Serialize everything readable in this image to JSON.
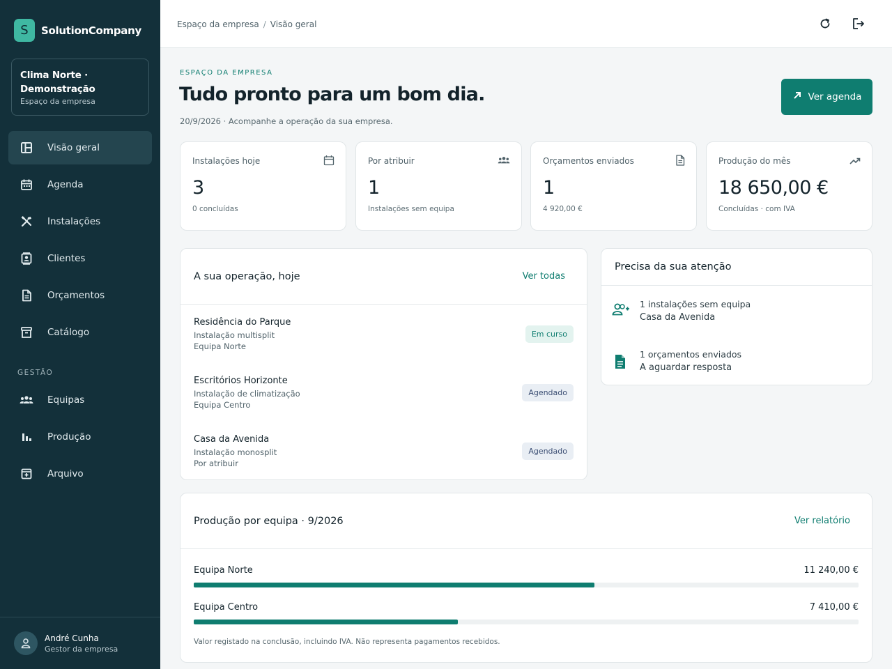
{
  "brand": {
    "logo_letter": "S",
    "name": "SolutionCompany"
  },
  "company": {
    "name": "Clima Norte · Demonstração",
    "subtitle": "Espaço da empresa"
  },
  "nav": {
    "items": [
      {
        "label": "Visão geral",
        "icon": "layout-icon",
        "active": true
      },
      {
        "label": "Agenda",
        "icon": "calendar-icon"
      },
      {
        "label": "Instalações",
        "icon": "tools-icon"
      },
      {
        "label": "Clientes",
        "icon": "contacts-icon"
      },
      {
        "label": "Orçamentos",
        "icon": "document-icon"
      },
      {
        "label": "Catálogo",
        "icon": "archive-box-icon"
      }
    ],
    "section_label": "GESTÃO",
    "management": [
      {
        "label": "Equipas",
        "icon": "group-icon"
      },
      {
        "label": "Produção",
        "icon": "bar-chart-icon"
      },
      {
        "label": "Arquivo",
        "icon": "archive-icon"
      }
    ]
  },
  "user": {
    "name": "André Cunha",
    "role": "Gestor da empresa"
  },
  "breadcrumb": {
    "root": "Espaço da empresa",
    "separator": "/",
    "current": "Visão geral"
  },
  "hero": {
    "eyebrow": "ESPAÇO DA EMPRESA",
    "title": "Tudo pronto para um bom dia.",
    "subtitle": "20/9/2026 · Acompanhe a operação da sua empresa.",
    "cta_label": "Ver agenda"
  },
  "stats": [
    {
      "label": "Instalações hoje",
      "value": "3",
      "note": "0 concluídas",
      "icon": "calendar-icon"
    },
    {
      "label": "Por atribuir",
      "value": "1",
      "note": "Instalações sem equipa",
      "icon": "group-icon"
    },
    {
      "label": "Orçamentos enviados",
      "value": "1",
      "note": "4 920,00 €",
      "icon": "document-icon"
    },
    {
      "label": "Produção do mês",
      "value": "18 650,00 €",
      "note": "Concluídas · com IVA",
      "icon": "trending-up-icon"
    }
  ],
  "operation": {
    "title": "A sua operação, hoje",
    "link": "Ver todas",
    "rows": [
      {
        "name": "Residência do Parque",
        "type": "Instalação multisplit",
        "team": "Equipa Norte",
        "status": "Em curso",
        "status_color": "#0f7d70"
      },
      {
        "name": "Escritórios Horizonte",
        "type": "Instalação de climatização",
        "team": "Equipa Centro",
        "status": "Agendado",
        "status_color": "#3b4e73"
      },
      {
        "name": "Casa da Avenida",
        "type": "Instalação monosplit",
        "team": "Por atribuir",
        "status": "Agendado",
        "status_color": "#3b4e73"
      }
    ]
  },
  "attention": {
    "title": "Precisa da sua atenção",
    "items": [
      {
        "line1": "1 instalações sem equipa",
        "line2": "Casa da Avenida",
        "icon": "add-user-icon"
      },
      {
        "line1": "1 orçamentos enviados",
        "line2": "A aguardar resposta",
        "icon": "document-icon"
      }
    ]
  },
  "production": {
    "title": "Produção por equipa · 9/2026",
    "link": "Ver relatório",
    "rows": [
      {
        "team": "Equipa Norte",
        "amount": "11 240,00 €",
        "fraction": 0.6026
      },
      {
        "team": "Equipa Centro",
        "amount": "7 410,00 €",
        "fraction": 0.3973
      }
    ],
    "note": "Valor registado na conclusão, incluindo IVA. Não representa pagamentos recebidos."
  },
  "colors": {
    "accent": "#0f7d70",
    "sidebar": "#13303a",
    "logo": "#3fb8a2"
  }
}
